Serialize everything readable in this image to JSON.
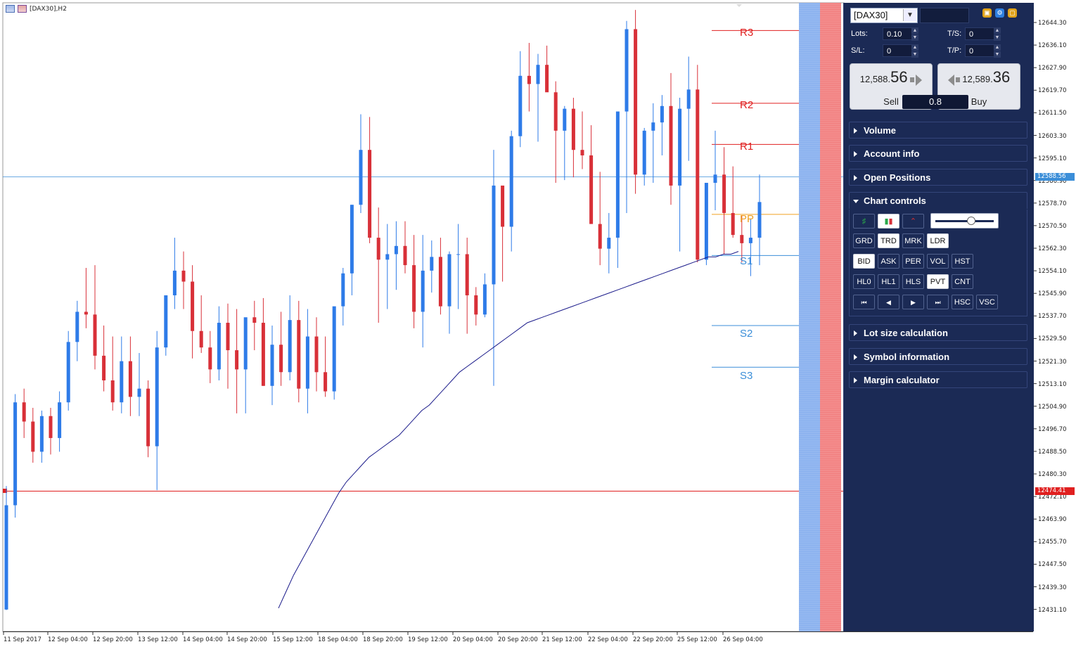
{
  "chart": {
    "title": "[DAX30],H2",
    "colors": {
      "bull": "#2e7be8",
      "bear": "#d83038",
      "ma": "#1a1a8a",
      "current": "#3b8ed8",
      "hline": "#e02020",
      "pp": "#f0a020",
      "res": "#e02020",
      "sup": "#3b8ed8",
      "zone_blue": "#8ab1ef",
      "zone_red": "#f28080"
    },
    "y_labels": [
      "12644.30",
      "12636.10",
      "12627.90",
      "12619.70",
      "12611.50",
      "12603.30",
      "12595.10",
      "12586.90",
      "12578.70",
      "12570.50",
      "12562.30",
      "12554.10",
      "12545.90",
      "12537.70",
      "12529.50",
      "12521.30",
      "12513.10",
      "12504.90",
      "12496.70",
      "12488.50",
      "12480.30",
      "12472.10",
      "12463.90",
      "12455.70",
      "12447.50",
      "12439.30",
      "12431.10"
    ],
    "x_labels": [
      "11 Sep 2017",
      "12 Sep 04:00",
      "12 Sep 20:00",
      "13 Sep 12:00",
      "14 Sep 04:00",
      "14 Sep 20:00",
      "15 Sep 12:00",
      "18 Sep 04:00",
      "18 Sep 20:00",
      "19 Sep 12:00",
      "20 Sep 04:00",
      "20 Sep 20:00",
      "21 Sep 12:00",
      "22 Sep 04:00",
      "22 Sep 20:00",
      "25 Sep 12:00",
      "26 Sep 04:00"
    ],
    "current_price": "12588.56",
    "hline_price": "12474.41",
    "pivots": {
      "R3": "R3",
      "R2": "R2",
      "R1": "R1",
      "PP": "PP",
      "S1": "S1",
      "S2": "S2",
      "S3": "S3"
    },
    "pivot_values": {
      "R3": 12641.5,
      "R2": 12615.0,
      "R1": 12600.0,
      "PP": 12574.5,
      "S1": 12559.5,
      "S2": 12534.0,
      "S3": 12518.8
    },
    "series": [
      [
        12430.5,
        12475.5,
        12430.3,
        12468.5
      ],
      [
        12468.5,
        12509.0,
        12464.0,
        12506.0
      ],
      [
        12506.0,
        12511.0,
        12493.0,
        12499.0
      ],
      [
        12499.0,
        12504.0,
        12484.0,
        12488.0
      ],
      [
        12488.0,
        12503.0,
        12484.0,
        12501.0
      ],
      [
        12501.0,
        12504.0,
        12487.0,
        12493.0
      ],
      [
        12493.0,
        12510.0,
        12488.0,
        12506.0
      ],
      [
        12506.0,
        12532.0,
        12503.0,
        12528.0
      ],
      [
        12528.0,
        12543.0,
        12521.0,
        12539.0
      ],
      [
        12539.0,
        12555.0,
        12533.0,
        12538.0
      ],
      [
        12538.0,
        12556.0,
        12518.0,
        12523.0
      ],
      [
        12523.0,
        12534.0,
        12510.0,
        12514.0
      ],
      [
        12514.0,
        12530.0,
        12503.0,
        12506.0
      ],
      [
        12506.0,
        12530.0,
        12502.0,
        12521.0
      ],
      [
        12521.0,
        12530.0,
        12501.0,
        12508.0
      ],
      [
        12508.0,
        12524.0,
        12501.0,
        12511.0
      ],
      [
        12511.0,
        12514.0,
        12486.0,
        12490.0
      ],
      [
        12490.0,
        12532.0,
        12474.0,
        12526.0
      ],
      [
        12526.0,
        12543.0,
        12523.0,
        12545.0
      ],
      [
        12545.0,
        12566.0,
        12540.0,
        12554.0
      ],
      [
        12554.0,
        12561.0,
        12540.0,
        12550.0
      ],
      [
        12550.0,
        12556.0,
        12522.0,
        12532.0
      ],
      [
        12532.0,
        12545.0,
        12524.0,
        12526.0
      ],
      [
        12526.0,
        12532.0,
        12513.0,
        12518.0
      ],
      [
        12518.0,
        12541.0,
        12514.0,
        12535.0
      ],
      [
        12535.0,
        12542.0,
        12511.0,
        12525.0
      ],
      [
        12525.0,
        12540.0,
        12502.0,
        12518.0
      ],
      [
        12518.0,
        12536.0,
        12502.0,
        12537.0
      ],
      [
        12537.0,
        12543.0,
        12525.0,
        12535.0
      ],
      [
        12535.0,
        12544.0,
        12512.0,
        12512.0
      ],
      [
        12512.0,
        12534.0,
        12505.0,
        12527.0
      ],
      [
        12527.0,
        12539.0,
        12512.0,
        12517.0
      ],
      [
        12517.0,
        12545.0,
        12514.0,
        12536.0
      ],
      [
        12536.0,
        12543.0,
        12506.0,
        12511.0
      ],
      [
        12511.0,
        12540.0,
        12502.0,
        12530.0
      ],
      [
        12530.0,
        12537.0,
        12510.0,
        12517.0
      ],
      [
        12517.0,
        12530.0,
        12508.0,
        12510.0
      ],
      [
        12510.0,
        12534.0,
        12507.0,
        12541.0
      ],
      [
        12541.0,
        12555.0,
        12534.0,
        12553.0
      ],
      [
        12553.0,
        12578.0,
        12545.0,
        12578.0
      ],
      [
        12578.0,
        12611.0,
        12575.0,
        12598.0
      ],
      [
        12598.0,
        12610.0,
        12564.0,
        12566.0
      ],
      [
        12566.0,
        12577.0,
        12535.0,
        12558.0
      ],
      [
        12558.0,
        12571.0,
        12540.0,
        12560.0
      ],
      [
        12560.0,
        12572.0,
        12547.0,
        12563.0
      ],
      [
        12563.0,
        12572.0,
        12553.0,
        12556.0
      ],
      [
        12556.0,
        12567.0,
        12533.0,
        12539.0
      ],
      [
        12539.0,
        12567.0,
        12526.0,
        12554.0
      ],
      [
        12554.0,
        12565.0,
        12546.0,
        12559.0
      ],
      [
        12559.0,
        12566.0,
        12538.0,
        12541.0
      ],
      [
        12541.0,
        12561.0,
        12531.0,
        12560.0
      ],
      [
        12560.0,
        12571.0,
        12540.0,
        12560.0
      ],
      [
        12560.0,
        12566.0,
        12531.0,
        12545.0
      ],
      [
        12545.0,
        12548.0,
        12534.0,
        12538.0
      ],
      [
        12538.0,
        12553.0,
        12537.0,
        12549.0
      ],
      [
        12549.0,
        12598.0,
        12512.0,
        12585.0
      ],
      [
        12585.0,
        12580.0,
        12550.0,
        12570.0
      ],
      [
        12570.0,
        12605.0,
        12561.0,
        12603.0
      ],
      [
        12603.0,
        12634.0,
        12599.0,
        12625.0
      ],
      [
        12625.0,
        12637.0,
        12612.0,
        12622.0
      ],
      [
        12622.0,
        12633.0,
        12601.0,
        12629.0
      ],
      [
        12629.0,
        12636.0,
        12620.0,
        12619.0
      ],
      [
        12619.0,
        12623.0,
        12586.0,
        12605.0
      ],
      [
        12605.0,
        12614.0,
        12587.0,
        12613.0
      ],
      [
        12613.0,
        12617.0,
        12588.0,
        12598.0
      ],
      [
        12598.0,
        12612.0,
        12591.0,
        12596.0
      ],
      [
        12596.0,
        12607.0,
        12575.0,
        12571.0
      ],
      [
        12571.0,
        12590.0,
        12556.0,
        12562.0
      ],
      [
        12562.0,
        12575.0,
        12553.0,
        12566.0
      ],
      [
        12566.0,
        12606.0,
        12555.0,
        12612.0
      ],
      [
        12612.0,
        12645.0,
        12575.0,
        12642.0
      ],
      [
        12642.0,
        12649.0,
        12582.0,
        12589.0
      ],
      [
        12589.0,
        12606.0,
        12585.0,
        12605.0
      ],
      [
        12605.0,
        12615.0,
        12586.0,
        12608.0
      ],
      [
        12608.0,
        12618.0,
        12596.0,
        12614.0
      ],
      [
        12614.0,
        12626.0,
        12578.0,
        12585.0
      ],
      [
        12585.0,
        12617.0,
        12561.0,
        12613.0
      ],
      [
        12613.0,
        12632.0,
        12594.0,
        12620.0
      ],
      [
        12620.0,
        12629.0,
        12557.0,
        12558.0
      ],
      [
        12558.0,
        12567.0,
        12556.0,
        12586.0
      ],
      [
        12586.0,
        12605.0,
        12576.0,
        12589.0
      ],
      [
        12589.0,
        12599.0,
        12560.0,
        12575.0
      ],
      [
        12575.0,
        12592.0,
        12566.0,
        12567.0
      ],
      [
        12567.0,
        12574.0,
        12557.0,
        12564.0
      ],
      [
        12564.0,
        12573.0,
        12552.0,
        12566.0
      ],
      [
        12566.0,
        12589.0,
        12556.0,
        12579.0
      ]
    ],
    "ma": [
      12431,
      12437,
      12443,
      12448,
      12453,
      12458,
      12463,
      12468,
      12473,
      12477,
      12480,
      12483,
      12486,
      12488,
      12490,
      12492,
      12494,
      12497,
      12500,
      12503,
      12505,
      12508,
      12511,
      12514,
      12517,
      12519,
      12521,
      12523,
      12525,
      12527,
      12529,
      12531,
      12533,
      12535,
      12536,
      12537,
      12538,
      12539,
      12540,
      12541,
      12542,
      12543,
      12544,
      12545,
      12546,
      12547,
      12548,
      12549,
      12550,
      12551,
      12552,
      12553,
      12554,
      12555,
      12556,
      12557,
      12558,
      12559,
      12559,
      12560,
      12560,
      12561
    ]
  },
  "panel": {
    "symbol": "[DAX30]",
    "lots_label": "Lots:",
    "lots_value": "0.10",
    "ts_label": "T/S:",
    "ts_value": "0",
    "sl_label": "S/L:",
    "sl_value": "0",
    "tp_label": "T/P:",
    "tp_value": "0",
    "sell": {
      "price_small": "12,588.",
      "price_big": "56",
      "label": "Sell"
    },
    "buy": {
      "price_small": "12,589.",
      "price_big": "36",
      "label": "Buy"
    },
    "spread": "0.8",
    "sections": {
      "volume": "Volume",
      "account": "Account info",
      "positions": "Open Positions",
      "controls": "Chart controls",
      "lot": "Lot size calculation",
      "symbol": "Symbol information",
      "margin": "Margin calculator"
    },
    "row1": [
      "GRD",
      "TRD",
      "MRK",
      "LDR"
    ],
    "row2": [
      "BID",
      "ASK",
      "PER",
      "VOL",
      "HST"
    ],
    "row3": [
      "HL0",
      "HL1",
      "HLS",
      "PVT",
      "CNT"
    ],
    "row4": [
      "HSC",
      "VSC"
    ],
    "active_buttons": [
      "TRD",
      "LDR",
      "BID",
      "PVT"
    ]
  }
}
